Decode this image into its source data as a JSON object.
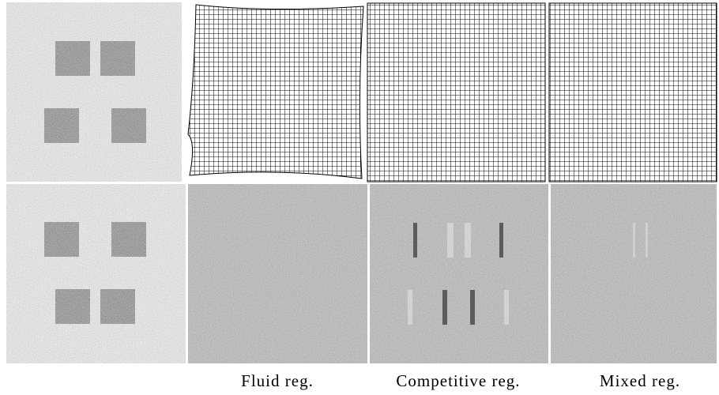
{
  "captions": [
    "Fluid reg.",
    "Competitive reg.",
    "Mixed reg."
  ]
}
